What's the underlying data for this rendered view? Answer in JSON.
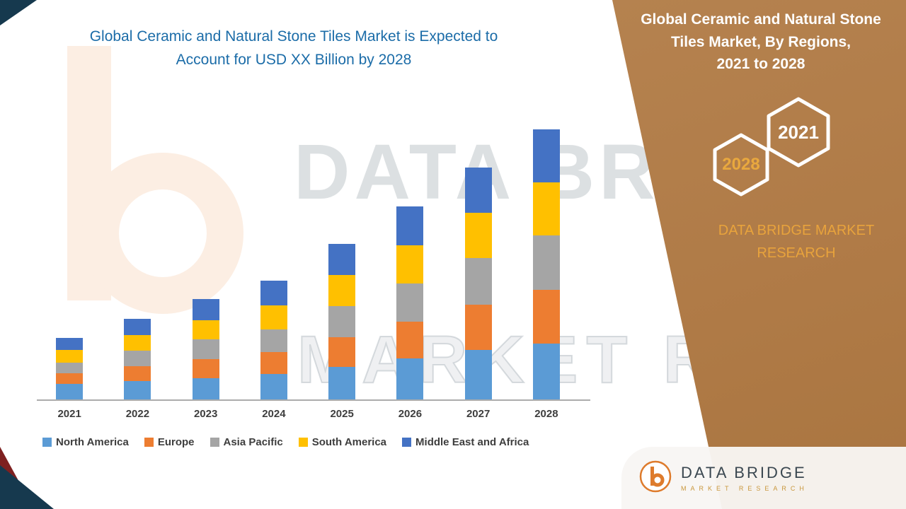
{
  "left_title": {
    "lines": [
      "Global Ceramic and Natural Stone Tiles Market is Expected to",
      "Account for USD XX Billion by 2028"
    ],
    "color": "#1B6CA8"
  },
  "right_panel": {
    "title_lines": [
      "Global Ceramic and Natural Stone",
      "Tiles Market, By Regions,",
      "2021 to 2028"
    ],
    "badge_2028": "2028",
    "badge_2021": "2021",
    "brand_lines": [
      "DATA BRIDGE MARKET",
      "RESEARCH"
    ],
    "panel_color": "#B5804C",
    "accent_gold": "#E8A33C"
  },
  "watermark": {
    "line1": "DATA BRIDGE",
    "line2": "MARKET RESEARCH"
  },
  "footer_logo": {
    "name": "DATA BRIDGE",
    "tagline": "MARKET RESEARCH"
  },
  "chart_data": {
    "type": "bar",
    "stacked": true,
    "title": "Global Ceramic and Natural Stone Tiles Market, By Regions, 2021 to 2028",
    "xlabel": "",
    "ylabel": "",
    "ylim": [
      0,
      40
    ],
    "grid": false,
    "legend_position": "bottom",
    "categories": [
      "2021",
      "2022",
      "2023",
      "2024",
      "2025",
      "2026",
      "2027",
      "2028"
    ],
    "series": [
      {
        "name": "North America",
        "color": "#5B9BD5",
        "values": [
          2.2,
          2.6,
          3.0,
          3.6,
          4.6,
          5.8,
          7.0,
          7.9
        ]
      },
      {
        "name": "Europe",
        "color": "#ED7D31",
        "values": [
          1.5,
          2.1,
          2.7,
          3.1,
          4.2,
          5.2,
          6.4,
          7.6
        ]
      },
      {
        "name": "Asia Pacific",
        "color": "#A5A5A5",
        "values": [
          1.5,
          2.2,
          2.8,
          3.2,
          4.4,
          5.4,
          6.6,
          7.7
        ]
      },
      {
        "name": "South America",
        "color": "#FFC000",
        "values": [
          1.8,
          2.2,
          2.7,
          3.4,
          4.4,
          5.4,
          6.4,
          7.5
        ]
      },
      {
        "name": "Middle East and Africa",
        "color": "#4472C4",
        "values": [
          1.7,
          2.3,
          3.0,
          3.5,
          4.4,
          5.5,
          6.4,
          7.5
        ]
      }
    ]
  }
}
